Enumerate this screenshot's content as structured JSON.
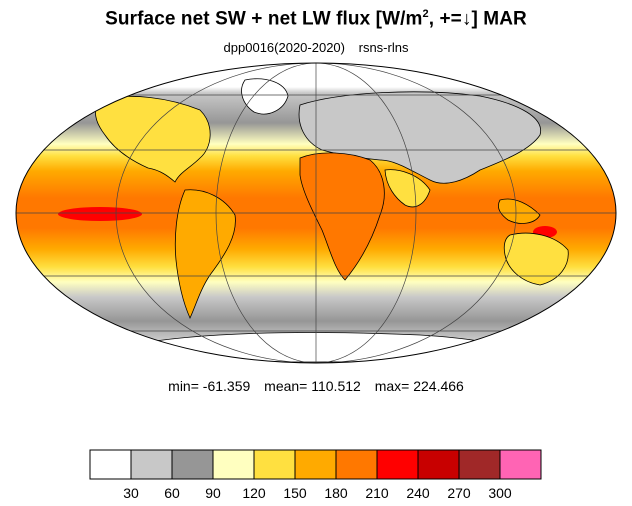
{
  "title": {
    "main": "Surface net SW + net LW flux [W/m",
    "sup": "2",
    "rest": ", +=↓]  MAR"
  },
  "subtitle": {
    "run": "dpp0016(2020-2020)",
    "variable": "rsns-rlns"
  },
  "stats": {
    "min": "min= -61.359",
    "mean": "mean= 110.512",
    "max": "max= 224.466"
  },
  "colorbar": {
    "colors": [
      "#ffffff",
      "#c8c8c8",
      "#969696",
      "#ffffc0",
      "#ffe040",
      "#ffaa00",
      "#ff7800",
      "#ff0000",
      "#c80000",
      "#a02828",
      "#ff64b4"
    ],
    "labels": [
      "30",
      "60",
      "90",
      "120",
      "150",
      "180",
      "210",
      "240",
      "270",
      "300"
    ]
  },
  "map": {
    "projection": "mollweide",
    "graticule_lat": [
      -60,
      -30,
      0,
      30,
      60
    ],
    "graticule_lon": [
      -120,
      -60,
      0,
      60,
      120
    ],
    "continent_outline_color": "#000000"
  }
}
